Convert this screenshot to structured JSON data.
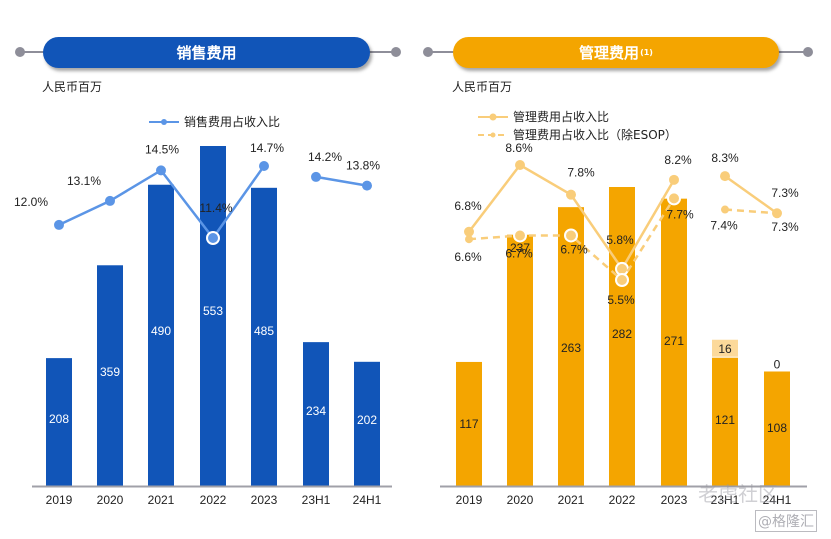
{
  "panels": [
    {
      "title": "销售费用",
      "title_sup": "",
      "unit": "人民币百万",
      "accent": "#1155b8",
      "line_color": "#5b95e6",
      "legend": [
        {
          "label": "销售费用占收入比",
          "style": "solid"
        }
      ]
    },
    {
      "title": "管理费用",
      "title_sup": "(1)",
      "unit": "人民币百万",
      "accent": "#f4a500",
      "line_color": "#f9cd7a",
      "legend": [
        {
          "label": "管理费用占收入比",
          "style": "solid"
        },
        {
          "label": "管理费用占收入比（除ESOP）",
          "style": "dashed"
        }
      ]
    }
  ],
  "watermark": {
    "line1": "老虎社区",
    "line2": "@格隆汇"
  },
  "chart_data": [
    {
      "type": "bar",
      "title": "销售费用",
      "ylabel": "人民币百万",
      "categories": [
        "2019",
        "2020",
        "2021",
        "2022",
        "2023",
        "23H1",
        "24H1"
      ],
      "series": [
        {
          "name": "销售费用",
          "values": [
            208,
            359,
            490,
            553,
            485,
            234,
            202
          ],
          "color": "#1155b8"
        }
      ],
      "line_series": [
        {
          "name": "销售费用占收入比",
          "values": [
            12.0,
            13.1,
            14.5,
            11.4,
            14.7,
            14.2,
            13.8
          ],
          "labels": [
            "12.0%",
            "13.1%",
            "14.5%",
            "11.4%",
            "14.7%",
            "14.2%",
            "13.8%"
          ],
          "break_after_index": 4,
          "style": "solid",
          "color": "#5b95e6"
        }
      ],
      "legend": "top-center"
    },
    {
      "type": "bar",
      "title": "管理费用(1)",
      "ylabel": "人民币百万",
      "categories": [
        "2019",
        "2020",
        "2021",
        "2022",
        "2023",
        "23H1",
        "24H1"
      ],
      "series": [
        {
          "name": "管理费用（除ESOP）",
          "values": [
            117,
            237,
            263,
            282,
            271,
            121,
            108
          ],
          "color": "#f4a500"
        },
        {
          "name": "ESOP",
          "values": [
            null,
            null,
            null,
            null,
            null,
            16,
            0
          ],
          "color": "#fcd99a"
        }
      ],
      "line_series": [
        {
          "name": "管理费用占收入比",
          "values": [
            6.8,
            8.6,
            7.8,
            5.8,
            8.2,
            8.3,
            7.3
          ],
          "labels": [
            "6.8%",
            "8.6%",
            "7.8%",
            "5.8%",
            "8.2%",
            "8.3%",
            "7.3%"
          ],
          "break_after_index": 4,
          "style": "solid",
          "color": "#f9cd7a"
        },
        {
          "name": "管理费用占收入比（除ESOP）",
          "values": [
            6.6,
            6.7,
            6.7,
            5.5,
            7.7,
            7.4,
            7.3
          ],
          "labels": [
            "6.6%",
            "6.7%",
            "6.7%",
            "5.5%",
            "7.7%",
            "7.4%",
            "7.3%"
          ],
          "break_after_index": 4,
          "style": "dashed",
          "color": "#f9cd7a"
        }
      ],
      "legend": "top-left"
    }
  ]
}
